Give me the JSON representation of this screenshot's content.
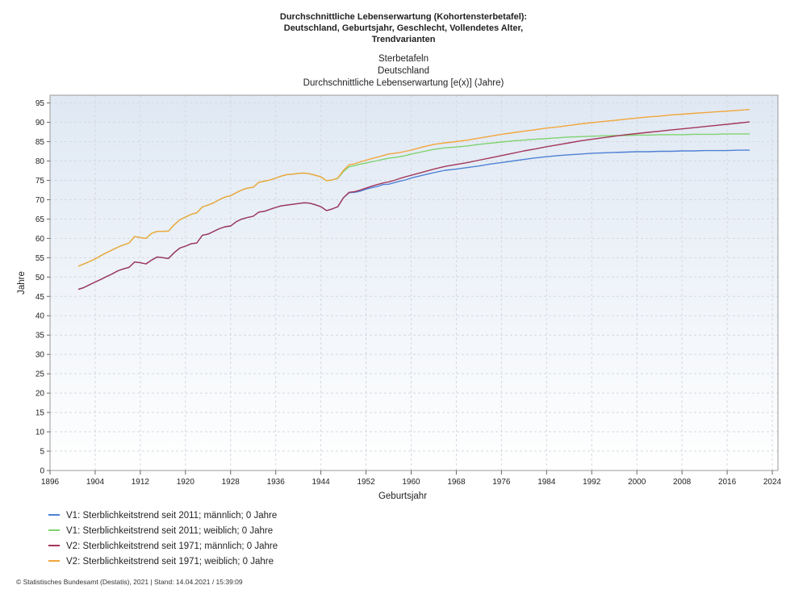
{
  "chart_data": {
    "type": "line",
    "title": [
      "Durchschnittliche Lebenserwartung (Kohortensterbetafel):",
      "Deutschland, Geburtsjahr, Geschlecht, Vollendetes Alter,",
      "Trendvarianten"
    ],
    "subtitle": [
      "Sterbetafeln",
      "Deutschland",
      "Durchschnittliche Lebenserwartung [e(x)] (Jahre)"
    ],
    "xlabel": "Geburtsjahr",
    "ylabel": "Jahre",
    "xlim": [
      1896,
      2025
    ],
    "ylim": [
      0,
      97
    ],
    "xticks": [
      1896,
      1904,
      1912,
      1920,
      1928,
      1936,
      1944,
      1952,
      1960,
      1968,
      1976,
      1984,
      1992,
      2000,
      2008,
      2016,
      2024
    ],
    "yticks": [
      0,
      5,
      10,
      15,
      20,
      25,
      30,
      35,
      40,
      45,
      50,
      55,
      60,
      65,
      70,
      75,
      80,
      85,
      90,
      95
    ],
    "grid": true,
    "legend_position": "bottom-left",
    "series": [
      {
        "name": "V1: Sterblichkeitstrend seit 2011; männlich; 0 Jahre",
        "color": "#4f81d6",
        "x": [
          1901,
          1902,
          1903,
          1904,
          1905,
          1906,
          1907,
          1908,
          1909,
          1910,
          1911,
          1912,
          1913,
          1914,
          1915,
          1916,
          1917,
          1918,
          1919,
          1920,
          1921,
          1922,
          1923,
          1924,
          1925,
          1926,
          1927,
          1928,
          1929,
          1930,
          1931,
          1932,
          1933,
          1934,
          1935,
          1936,
          1937,
          1938,
          1939,
          1940,
          1941,
          1942,
          1943,
          1944,
          1945,
          1946,
          1947,
          1948,
          1949,
          1950,
          1951,
          1952,
          1953,
          1954,
          1955,
          1956,
          1957,
          1958,
          1959,
          1960,
          1962,
          1964,
          1966,
          1968,
          1970,
          1972,
          1974,
          1976,
          1978,
          1980,
          1982,
          1984,
          1986,
          1988,
          1990,
          1992,
          1994,
          1996,
          1998,
          2000,
          2002,
          2004,
          2006,
          2008,
          2010,
          2012,
          2014,
          2016,
          2018,
          2020
        ],
        "values": [
          46.8,
          47.3,
          48.0,
          48.7,
          49.4,
          50.1,
          50.8,
          51.6,
          52.1,
          52.5,
          53.9,
          53.7,
          53.4,
          54.4,
          55.2,
          55.0,
          54.8,
          56.3,
          57.5,
          58.0,
          58.6,
          58.8,
          60.8,
          61.1,
          61.8,
          62.5,
          63.0,
          63.2,
          64.3,
          65.0,
          65.4,
          65.7,
          66.8,
          67.0,
          67.5,
          68.0,
          68.4,
          68.6,
          68.8,
          69.0,
          69.2,
          69.1,
          68.7,
          68.2,
          67.2,
          67.6,
          68.2,
          70.5,
          71.8,
          71.9,
          72.2,
          72.7,
          73.1,
          73.4,
          73.9,
          74.0,
          74.4,
          74.8,
          75.1,
          75.6,
          76.3,
          77.0,
          77.6,
          77.9,
          78.3,
          78.7,
          79.2,
          79.6,
          80.0,
          80.4,
          80.8,
          81.1,
          81.4,
          81.6,
          81.8,
          82.0,
          82.1,
          82.2,
          82.3,
          82.4,
          82.4,
          82.5,
          82.5,
          82.6,
          82.6,
          82.7,
          82.7,
          82.7,
          82.8,
          82.8
        ]
      },
      {
        "name": "V1: Sterblichkeitstrend seit 2011; weiblich; 0 Jahre",
        "color": "#7fd36e",
        "x": [
          1901,
          1902,
          1903,
          1904,
          1905,
          1906,
          1907,
          1908,
          1909,
          1910,
          1911,
          1912,
          1913,
          1914,
          1915,
          1916,
          1917,
          1918,
          1919,
          1920,
          1921,
          1922,
          1923,
          1924,
          1925,
          1926,
          1927,
          1928,
          1929,
          1930,
          1931,
          1932,
          1933,
          1934,
          1935,
          1936,
          1937,
          1938,
          1939,
          1940,
          1941,
          1942,
          1943,
          1944,
          1945,
          1946,
          1947,
          1948,
          1949,
          1950,
          1951,
          1952,
          1953,
          1954,
          1955,
          1956,
          1957,
          1958,
          1959,
          1960,
          1962,
          1964,
          1966,
          1968,
          1970,
          1972,
          1974,
          1976,
          1978,
          1980,
          1982,
          1984,
          1986,
          1988,
          1990,
          1992,
          1994,
          1996,
          1998,
          2000,
          2002,
          2004,
          2006,
          2008,
          2010,
          2012,
          2014,
          2016,
          2018,
          2020
        ],
        "values": [
          52.8,
          53.4,
          54.0,
          54.7,
          55.5,
          56.3,
          57.0,
          57.7,
          58.3,
          58.8,
          60.5,
          60.2,
          60.0,
          61.3,
          61.8,
          61.8,
          61.9,
          63.5,
          64.8,
          65.5,
          66.2,
          66.6,
          68.1,
          68.6,
          69.2,
          70.0,
          70.7,
          71.0,
          71.8,
          72.5,
          73.0,
          73.2,
          74.5,
          74.8,
          75.1,
          75.6,
          76.1,
          76.5,
          76.6,
          76.8,
          76.9,
          76.7,
          76.3,
          75.9,
          74.9,
          75.1,
          75.5,
          77.3,
          78.5,
          78.8,
          79.2,
          79.5,
          79.8,
          80.1,
          80.4,
          80.7,
          80.9,
          81.1,
          81.4,
          81.8,
          82.4,
          83.0,
          83.4,
          83.6,
          83.9,
          84.3,
          84.6,
          84.9,
          85.2,
          85.4,
          85.6,
          85.8,
          86.0,
          86.2,
          86.3,
          86.4,
          86.5,
          86.6,
          86.6,
          86.7,
          86.7,
          86.8,
          86.8,
          86.8,
          86.9,
          86.9,
          86.9,
          87.0,
          87.0,
          87.0
        ]
      },
      {
        "name": "V2: Sterblichkeitstrend seit 1971; männlich; 0 Jahre",
        "color": "#a3365b",
        "x": [
          1901,
          1902,
          1903,
          1904,
          1905,
          1906,
          1907,
          1908,
          1909,
          1910,
          1911,
          1912,
          1913,
          1914,
          1915,
          1916,
          1917,
          1918,
          1919,
          1920,
          1921,
          1922,
          1923,
          1924,
          1925,
          1926,
          1927,
          1928,
          1929,
          1930,
          1931,
          1932,
          1933,
          1934,
          1935,
          1936,
          1937,
          1938,
          1939,
          1940,
          1941,
          1942,
          1943,
          1944,
          1945,
          1946,
          1947,
          1948,
          1949,
          1950,
          1951,
          1952,
          1953,
          1954,
          1955,
          1956,
          1957,
          1958,
          1959,
          1960,
          1962,
          1964,
          1966,
          1968,
          1970,
          1972,
          1974,
          1976,
          1978,
          1980,
          1982,
          1984,
          1986,
          1988,
          1990,
          1992,
          1994,
          1996,
          1998,
          2000,
          2002,
          2004,
          2006,
          2008,
          2010,
          2012,
          2014,
          2016,
          2018,
          2020
        ],
        "values": [
          46.8,
          47.3,
          48.0,
          48.7,
          49.4,
          50.1,
          50.8,
          51.6,
          52.1,
          52.5,
          53.9,
          53.7,
          53.4,
          54.4,
          55.2,
          55.0,
          54.8,
          56.3,
          57.5,
          58.0,
          58.6,
          58.8,
          60.8,
          61.1,
          61.8,
          62.5,
          63.0,
          63.2,
          64.3,
          65.0,
          65.4,
          65.7,
          66.8,
          67.0,
          67.5,
          68.0,
          68.4,
          68.6,
          68.8,
          69.0,
          69.2,
          69.1,
          68.7,
          68.2,
          67.2,
          67.6,
          68.2,
          70.5,
          71.9,
          72.1,
          72.5,
          73.0,
          73.5,
          73.9,
          74.3,
          74.6,
          75.0,
          75.5,
          75.9,
          76.3,
          77.1,
          77.9,
          78.6,
          79.1,
          79.6,
          80.2,
          80.8,
          81.4,
          82.0,
          82.6,
          83.1,
          83.7,
          84.2,
          84.7,
          85.2,
          85.6,
          86.0,
          86.4,
          86.8,
          87.1,
          87.4,
          87.7,
          88.0,
          88.3,
          88.6,
          88.9,
          89.2,
          89.5,
          89.8,
          90.1
        ]
      },
      {
        "name": "V2: Sterblichkeitstrend seit 1971; weiblich; 0 Jahre",
        "color": "#f2a63c",
        "x": [
          1901,
          1902,
          1903,
          1904,
          1905,
          1906,
          1907,
          1908,
          1909,
          1910,
          1911,
          1912,
          1913,
          1914,
          1915,
          1916,
          1917,
          1918,
          1919,
          1920,
          1921,
          1922,
          1923,
          1924,
          1925,
          1926,
          1927,
          1928,
          1929,
          1930,
          1931,
          1932,
          1933,
          1934,
          1935,
          1936,
          1937,
          1938,
          1939,
          1940,
          1941,
          1942,
          1943,
          1944,
          1945,
          1946,
          1947,
          1948,
          1949,
          1950,
          1951,
          1952,
          1953,
          1954,
          1955,
          1956,
          1957,
          1958,
          1959,
          1960,
          1962,
          1964,
          1966,
          1968,
          1970,
          1972,
          1974,
          1976,
          1978,
          1980,
          1982,
          1984,
          1986,
          1988,
          1990,
          1992,
          1994,
          1996,
          1998,
          2000,
          2002,
          2004,
          2006,
          2008,
          2010,
          2012,
          2014,
          2016,
          2018,
          2020
        ],
        "values": [
          52.8,
          53.4,
          54.0,
          54.7,
          55.5,
          56.3,
          57.0,
          57.7,
          58.3,
          58.8,
          60.5,
          60.2,
          60.0,
          61.3,
          61.8,
          61.8,
          61.9,
          63.5,
          64.8,
          65.5,
          66.2,
          66.6,
          68.1,
          68.6,
          69.2,
          70.0,
          70.7,
          71.0,
          71.8,
          72.5,
          73.0,
          73.2,
          74.5,
          74.8,
          75.1,
          75.6,
          76.1,
          76.5,
          76.6,
          76.8,
          76.9,
          76.7,
          76.3,
          75.9,
          74.9,
          75.1,
          75.6,
          77.6,
          79.0,
          79.3,
          79.8,
          80.2,
          80.6,
          81.0,
          81.4,
          81.8,
          82.0,
          82.2,
          82.5,
          82.8,
          83.6,
          84.3,
          84.7,
          85.0,
          85.4,
          85.9,
          86.4,
          86.9,
          87.3,
          87.7,
          88.1,
          88.5,
          88.8,
          89.2,
          89.6,
          89.9,
          90.2,
          90.5,
          90.8,
          91.1,
          91.4,
          91.6,
          91.9,
          92.1,
          92.3,
          92.5,
          92.7,
          92.9,
          93.1,
          93.3
        ]
      }
    ]
  },
  "footer": "© Statistisches Bundesamt (Destatis), 2021 | Stand: 14.04.2021 / 15:39:09"
}
